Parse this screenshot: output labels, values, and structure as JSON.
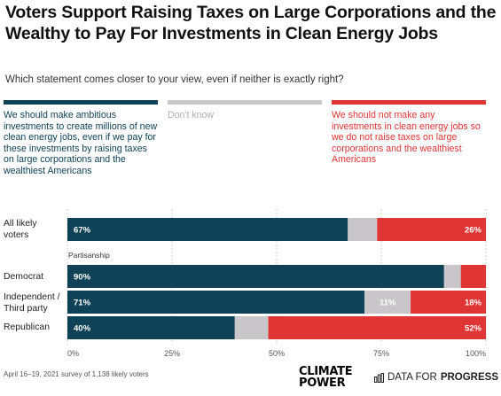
{
  "title": "Voters Support Raising Taxes on Large Corporations and the Wealthy to Pay For Investments in Clean Energy Jobs",
  "subtitle": "Which statement comes closer to your view, even if neither is exactly right?",
  "legend": [
    {
      "text": "We should make ambitious investments to create millions of new clean energy jobs, even if we pay for these investments by raising taxes on large corporations and the wealthiest Americans",
      "color": "#0f4257"
    },
    {
      "text": "Don't know",
      "color": "#c9c6c9"
    },
    {
      "text": "We should not make any investments in clean energy jobs so we do not raise taxes on large corporations and the wealthiest Americans",
      "color": "#e03535"
    }
  ],
  "group_label": "Partisanship",
  "footnote": "April 16–19, 2021 survey of 1,138 likely voters",
  "logos": {
    "climate_power_line1": "CLIMATE",
    "climate_power_line2": "POWER",
    "dfp_regular": "DATA FOR",
    "dfp_bold": "PROGRESS"
  },
  "chart_data": {
    "type": "bar",
    "orientation": "horizontal",
    "stacked": true,
    "categories": [
      "All likely voters",
      "Democrat",
      "Independent / Third party",
      "Republican"
    ],
    "series": [
      {
        "name": "We should make ambitious investments to create millions of new clean energy jobs, even if we pay for these investments by raising taxes on large corporations and the wealthiest Americans",
        "values": [
          67,
          90,
          71,
          40
        ],
        "color": "#0f4257"
      },
      {
        "name": "Don't know",
        "values": [
          7,
          4,
          11,
          8
        ],
        "color": "#c9c6c9"
      },
      {
        "name": "We should not make any investments in clean energy jobs so we do not raise taxes on large corporations and the wealthiest Americans",
        "values": [
          26,
          6,
          18,
          52
        ],
        "color": "#e03535"
      }
    ],
    "data_labels": [
      [
        "67%",
        "",
        "26%"
      ],
      [
        "90%",
        "",
        ""
      ],
      [
        "71%",
        "11%",
        "18%"
      ],
      [
        "40%",
        "",
        "52%"
      ]
    ],
    "xlim": [
      0,
      100
    ],
    "xticks": [
      "0%",
      "25%",
      "50%",
      "75%",
      "100%"
    ],
    "grid": true
  }
}
